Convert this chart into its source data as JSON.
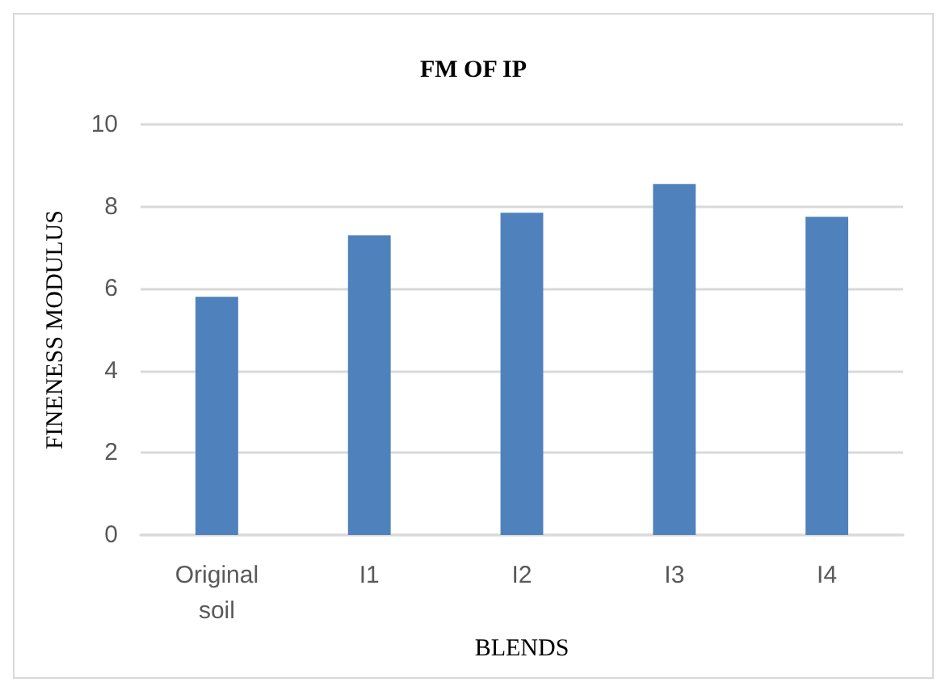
{
  "chart_data": {
    "type": "bar",
    "title": "FM OF IP",
    "xlabel": "BLENDS",
    "ylabel": "FINENESS MODULUS",
    "categories": [
      "Original\nsoil",
      "I1",
      "I2",
      "I3",
      "I4"
    ],
    "values": [
      5.8,
      7.3,
      7.85,
      8.55,
      7.75
    ],
    "color": "#4f81bd",
    "ylim": [
      0,
      10
    ],
    "yticks": [
      0,
      2,
      4,
      6,
      8,
      10
    ],
    "grid": "y"
  }
}
